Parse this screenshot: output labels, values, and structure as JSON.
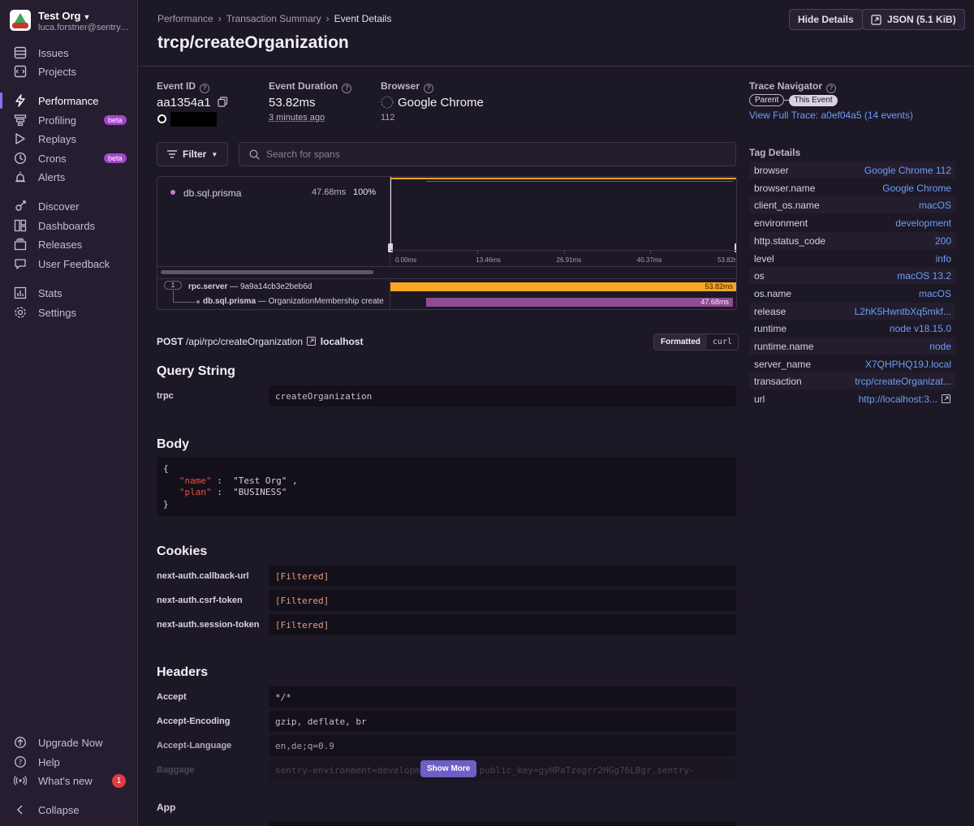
{
  "org": {
    "name": "Test Org",
    "email": "luca.forstner@sentry.io"
  },
  "sidebar": {
    "items": [
      {
        "label": "Issues",
        "icon": "issues-icon"
      },
      {
        "label": "Projects",
        "icon": "projects-icon"
      },
      {
        "label": "Performance",
        "icon": "performance-icon",
        "active": true
      },
      {
        "label": "Profiling",
        "icon": "profiling-icon",
        "badge": "beta"
      },
      {
        "label": "Replays",
        "icon": "replays-icon"
      },
      {
        "label": "Crons",
        "icon": "crons-icon",
        "badge": "beta"
      },
      {
        "label": "Alerts",
        "icon": "alerts-icon"
      },
      {
        "label": "Discover",
        "icon": "discover-icon"
      },
      {
        "label": "Dashboards",
        "icon": "dashboards-icon"
      },
      {
        "label": "Releases",
        "icon": "releases-icon"
      },
      {
        "label": "User Feedback",
        "icon": "user-feedback-icon"
      },
      {
        "label": "Stats",
        "icon": "stats-icon"
      },
      {
        "label": "Settings",
        "icon": "settings-icon"
      }
    ],
    "footer": [
      {
        "label": "Upgrade Now",
        "icon": "upgrade-icon"
      },
      {
        "label": "Help",
        "icon": "help-icon"
      },
      {
        "label": "What's new",
        "icon": "broadcast-icon",
        "count": "1"
      },
      {
        "label": "Collapse",
        "icon": "collapse-icon"
      }
    ]
  },
  "header": {
    "breadcrumbs": [
      "Performance",
      "Transaction Summary",
      "Event Details"
    ],
    "title": "trcp/createOrganization",
    "hide_details": "Hide Details",
    "json_button": "JSON (5.1 KiB)"
  },
  "event": {
    "id_label": "Event ID",
    "id": "aa1354a1",
    "duration_label": "Event Duration",
    "duration": "53.82ms",
    "time_ago": "3 minutes ago",
    "browser_label": "Browser",
    "browser": "Google Chrome",
    "browser_version": "112"
  },
  "trace": {
    "label": "Trace Navigator",
    "parent": "Parent",
    "this_event": "This Event",
    "link": "View Full Trace: a0ef04a5 (14 events)"
  },
  "toolbar": {
    "filter": "Filter",
    "search_placeholder": "Search for spans"
  },
  "waterfall": {
    "ops": [
      {
        "op": "db.sql.prisma",
        "duration": "47.68ms",
        "percent": "100%"
      }
    ],
    "ticks": [
      "0.00ms",
      "13.46ms",
      "26.91ms",
      "40.37ms",
      "53.82ms"
    ],
    "total_ms": 53.82,
    "spans": [
      {
        "count": "1",
        "op": "rpc.server",
        "desc": "9a9a14cb3e2beb6d",
        "start_ms": 0,
        "duration_ms": 53.82,
        "duration": "53.82ms",
        "color": "#f5a623"
      },
      {
        "op": "db.sql.prisma",
        "desc": "OrganizationMembership create",
        "start_ms": 5.5,
        "duration_ms": 47.68,
        "duration": "47.68ms",
        "color": "#8e4b96"
      }
    ]
  },
  "request": {
    "method": "POST",
    "path": "/api/rpc/createOrganization",
    "host": "localhost",
    "formatted": "Formatted",
    "curl": "curl"
  },
  "query_string": {
    "title": "Query String",
    "rows": [
      {
        "key": "trpc",
        "value": "createOrganization"
      }
    ]
  },
  "body": {
    "title": "Body",
    "open": "{",
    "close": "}",
    "fields": [
      {
        "key": "\"name\"",
        "value": "\"Test Org\"",
        "sep": ","
      },
      {
        "key": "\"plan\"",
        "value": "\"BUSINESS\"",
        "sep": ""
      }
    ]
  },
  "cookies": {
    "title": "Cookies",
    "rows": [
      {
        "key": "next-auth.callback-url",
        "value": "[Filtered]"
      },
      {
        "key": "next-auth.csrf-token",
        "value": "[Filtered]"
      },
      {
        "key": "next-auth.session-token",
        "value": "[Filtered]"
      }
    ]
  },
  "headers": {
    "title": "Headers",
    "rows": [
      {
        "key": "Accept",
        "value": "*/*"
      },
      {
        "key": "Accept-Encoding",
        "value": "gzip, deflate, br"
      },
      {
        "key": "Accept-Language",
        "value": "en,de;q=0.9"
      },
      {
        "key": "Baggage",
        "value": "sentry-environment=development,sentry-public_key=gyHPaTzegrr2HGg76LBgr,sentry-"
      }
    ],
    "show_more": "Show More"
  },
  "app": {
    "title": "App"
  },
  "tags": {
    "title": "Tag Details",
    "rows": [
      {
        "key": "browser",
        "value": "Google Chrome 112"
      },
      {
        "key": "browser.name",
        "value": "Google Chrome"
      },
      {
        "key": "client_os.name",
        "value": "macOS"
      },
      {
        "key": "environment",
        "value": "development"
      },
      {
        "key": "http.status_code",
        "value": "200"
      },
      {
        "key": "level",
        "value": "info"
      },
      {
        "key": "os",
        "value": "macOS 13.2"
      },
      {
        "key": "os.name",
        "value": "macOS"
      },
      {
        "key": "release",
        "value": "L2hK5HwntbXq5mkf..."
      },
      {
        "key": "runtime",
        "value": "node v18.15.0"
      },
      {
        "key": "runtime.name",
        "value": "node"
      },
      {
        "key": "server_name",
        "value": "X7QHPHQ19J.local"
      },
      {
        "key": "transaction",
        "value": "trcp/createOrganizat..."
      },
      {
        "key": "url",
        "value": "http://localhost:3..."
      }
    ]
  },
  "colors": {
    "accent": "#8c6cf2",
    "link": "#6c9ef8",
    "rpc_span": "#f5a623",
    "db_span": "#8e4b96",
    "filtered": "#e89b7c"
  }
}
